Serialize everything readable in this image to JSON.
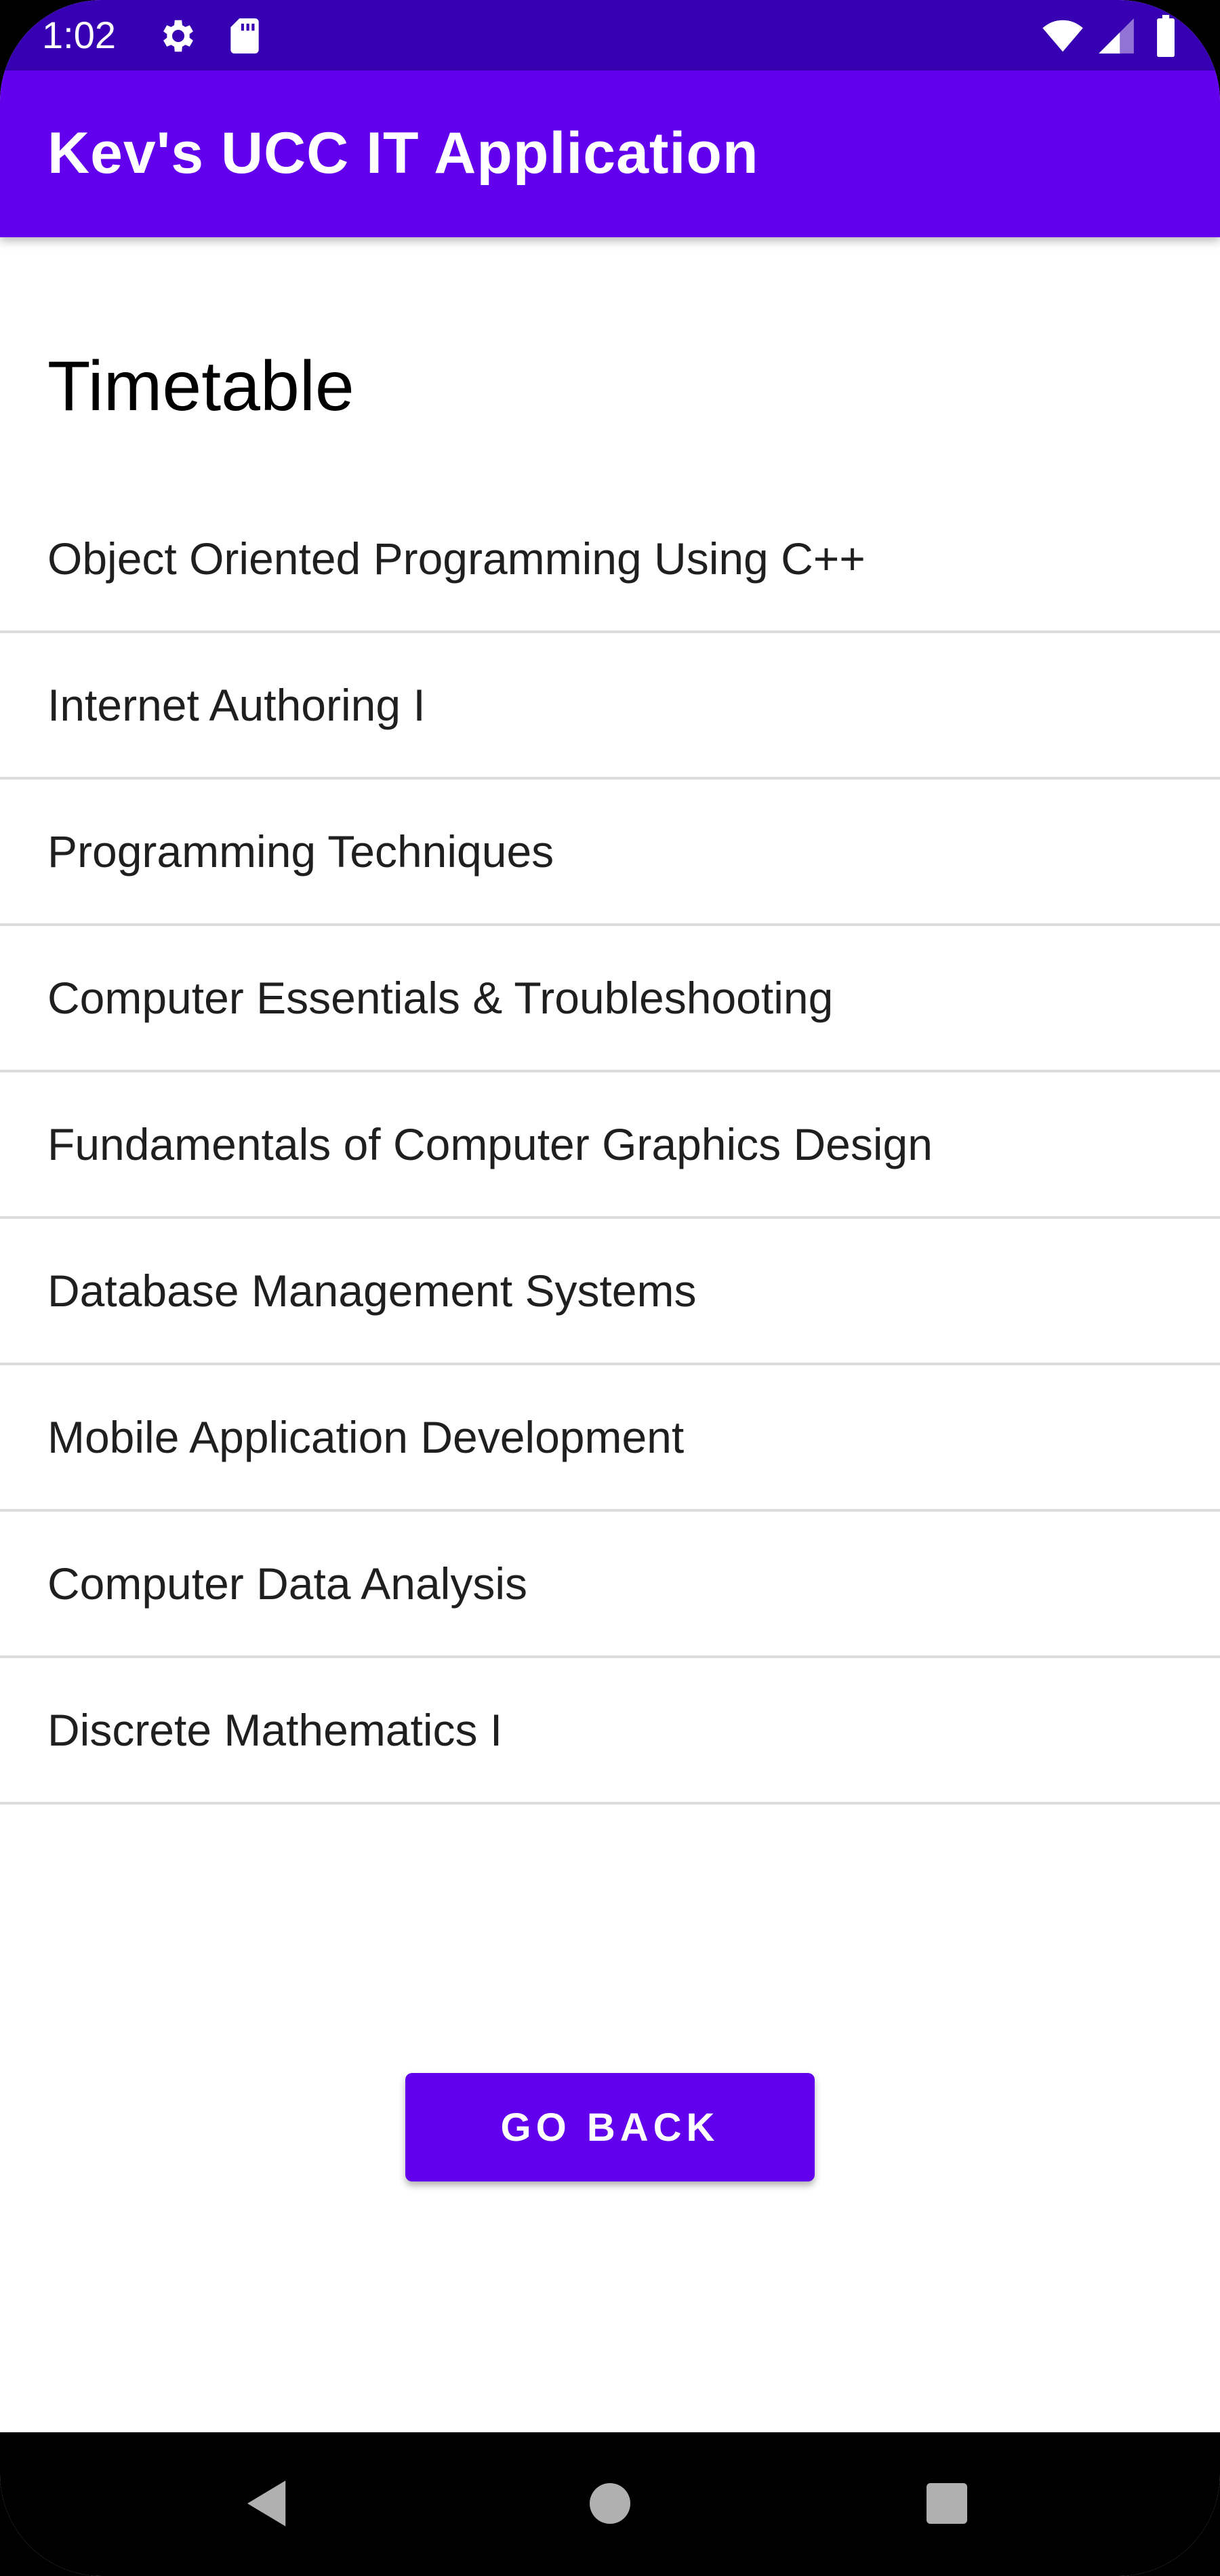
{
  "status_bar": {
    "time": "1:02",
    "icons": [
      "gear-icon",
      "sd-card-icon",
      "wifi-icon",
      "signal-icon",
      "battery-icon"
    ]
  },
  "app_bar": {
    "title": "Kev's UCC IT Application",
    "color": "#6200ee"
  },
  "page": {
    "heading": "Timetable"
  },
  "courses": [
    "Object Oriented Programming Using C++",
    "Internet Authoring I",
    "Programming Techniques",
    "Computer Essentials & Troubleshooting",
    "Fundamentals of Computer Graphics Design",
    "Database Management Systems",
    "Mobile Application Development",
    "Computer Data Analysis",
    "Discrete Mathematics I"
  ],
  "go_back_button": {
    "label": "GO BACK"
  },
  "nav_bar": {
    "icons": [
      "back-icon",
      "home-icon",
      "recents-icon"
    ]
  },
  "colors": {
    "status_bar": "#3700b3",
    "primary": "#6200ee",
    "divider": "#dcdcdc"
  }
}
